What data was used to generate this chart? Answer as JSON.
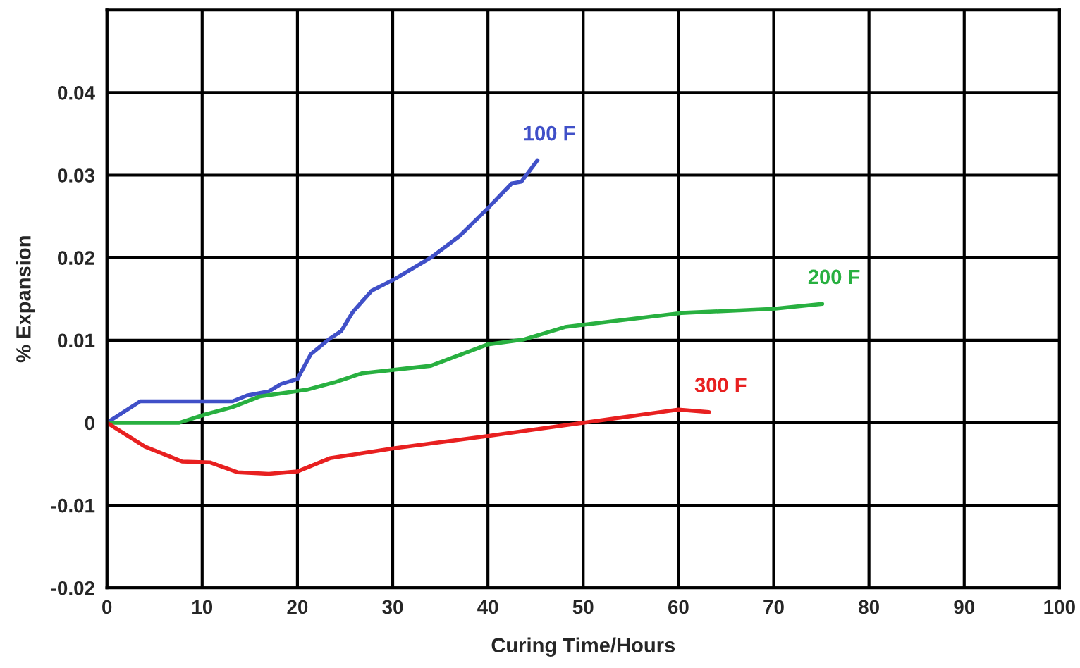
{
  "chart_data": {
    "type": "line",
    "xlabel": "Curing Time/Hours",
    "ylabel": "% Expansion",
    "xlim": [
      0,
      100
    ],
    "xticks": [
      0,
      10,
      20,
      30,
      40,
      50,
      60,
      70,
      80,
      90,
      100
    ],
    "ylim": [
      -0.02,
      0.05
    ],
    "yticks": [
      -0.02,
      -0.01,
      0,
      0.01,
      0.02,
      0.03,
      0.04
    ],
    "grid": true,
    "legend": false,
    "series": [
      {
        "name": "100 F",
        "color": "#4050c8",
        "x": [
          0,
          3.5,
          13.2,
          14.7,
          17,
          18.3,
          20,
          21.4,
          23.4,
          24.6,
          25.8,
          27.8,
          30.2,
          34,
          37,
          40,
          42.5,
          43.5,
          45.2
        ],
        "values": [
          0,
          0.0026,
          0.0026,
          0.0033,
          0.0038,
          0.0047,
          0.0053,
          0.0083,
          0.0102,
          0.0111,
          0.0134,
          0.016,
          0.0174,
          0.02,
          0.0226,
          0.026,
          0.029,
          0.0292,
          0.0318
        ]
      },
      {
        "name": "200 F",
        "color": "#28b040",
        "x": [
          0,
          7.6,
          10.3,
          13.2,
          16.1,
          21,
          23.9,
          26.8,
          34,
          40,
          43.8,
          48.1,
          60.3,
          70,
          75.1
        ],
        "values": [
          0,
          0,
          0.001,
          0.0019,
          0.0032,
          0.004,
          0.0049,
          0.006,
          0.0069,
          0.0095,
          0.0101,
          0.0116,
          0.0133,
          0.0138,
          0.0144
        ]
      },
      {
        "name": "300 F",
        "color": "#e82020",
        "x": [
          0,
          4,
          7.9,
          10.8,
          13.7,
          17,
          20,
          23.4,
          30.1,
          40,
          50,
          60,
          63.2
        ],
        "values": [
          0,
          -0.0029,
          -0.0047,
          -0.0048,
          -0.006,
          -0.0062,
          -0.0059,
          -0.0043,
          -0.0031,
          -0.0016,
          0,
          0.0016,
          0.0013
        ]
      }
    ]
  }
}
